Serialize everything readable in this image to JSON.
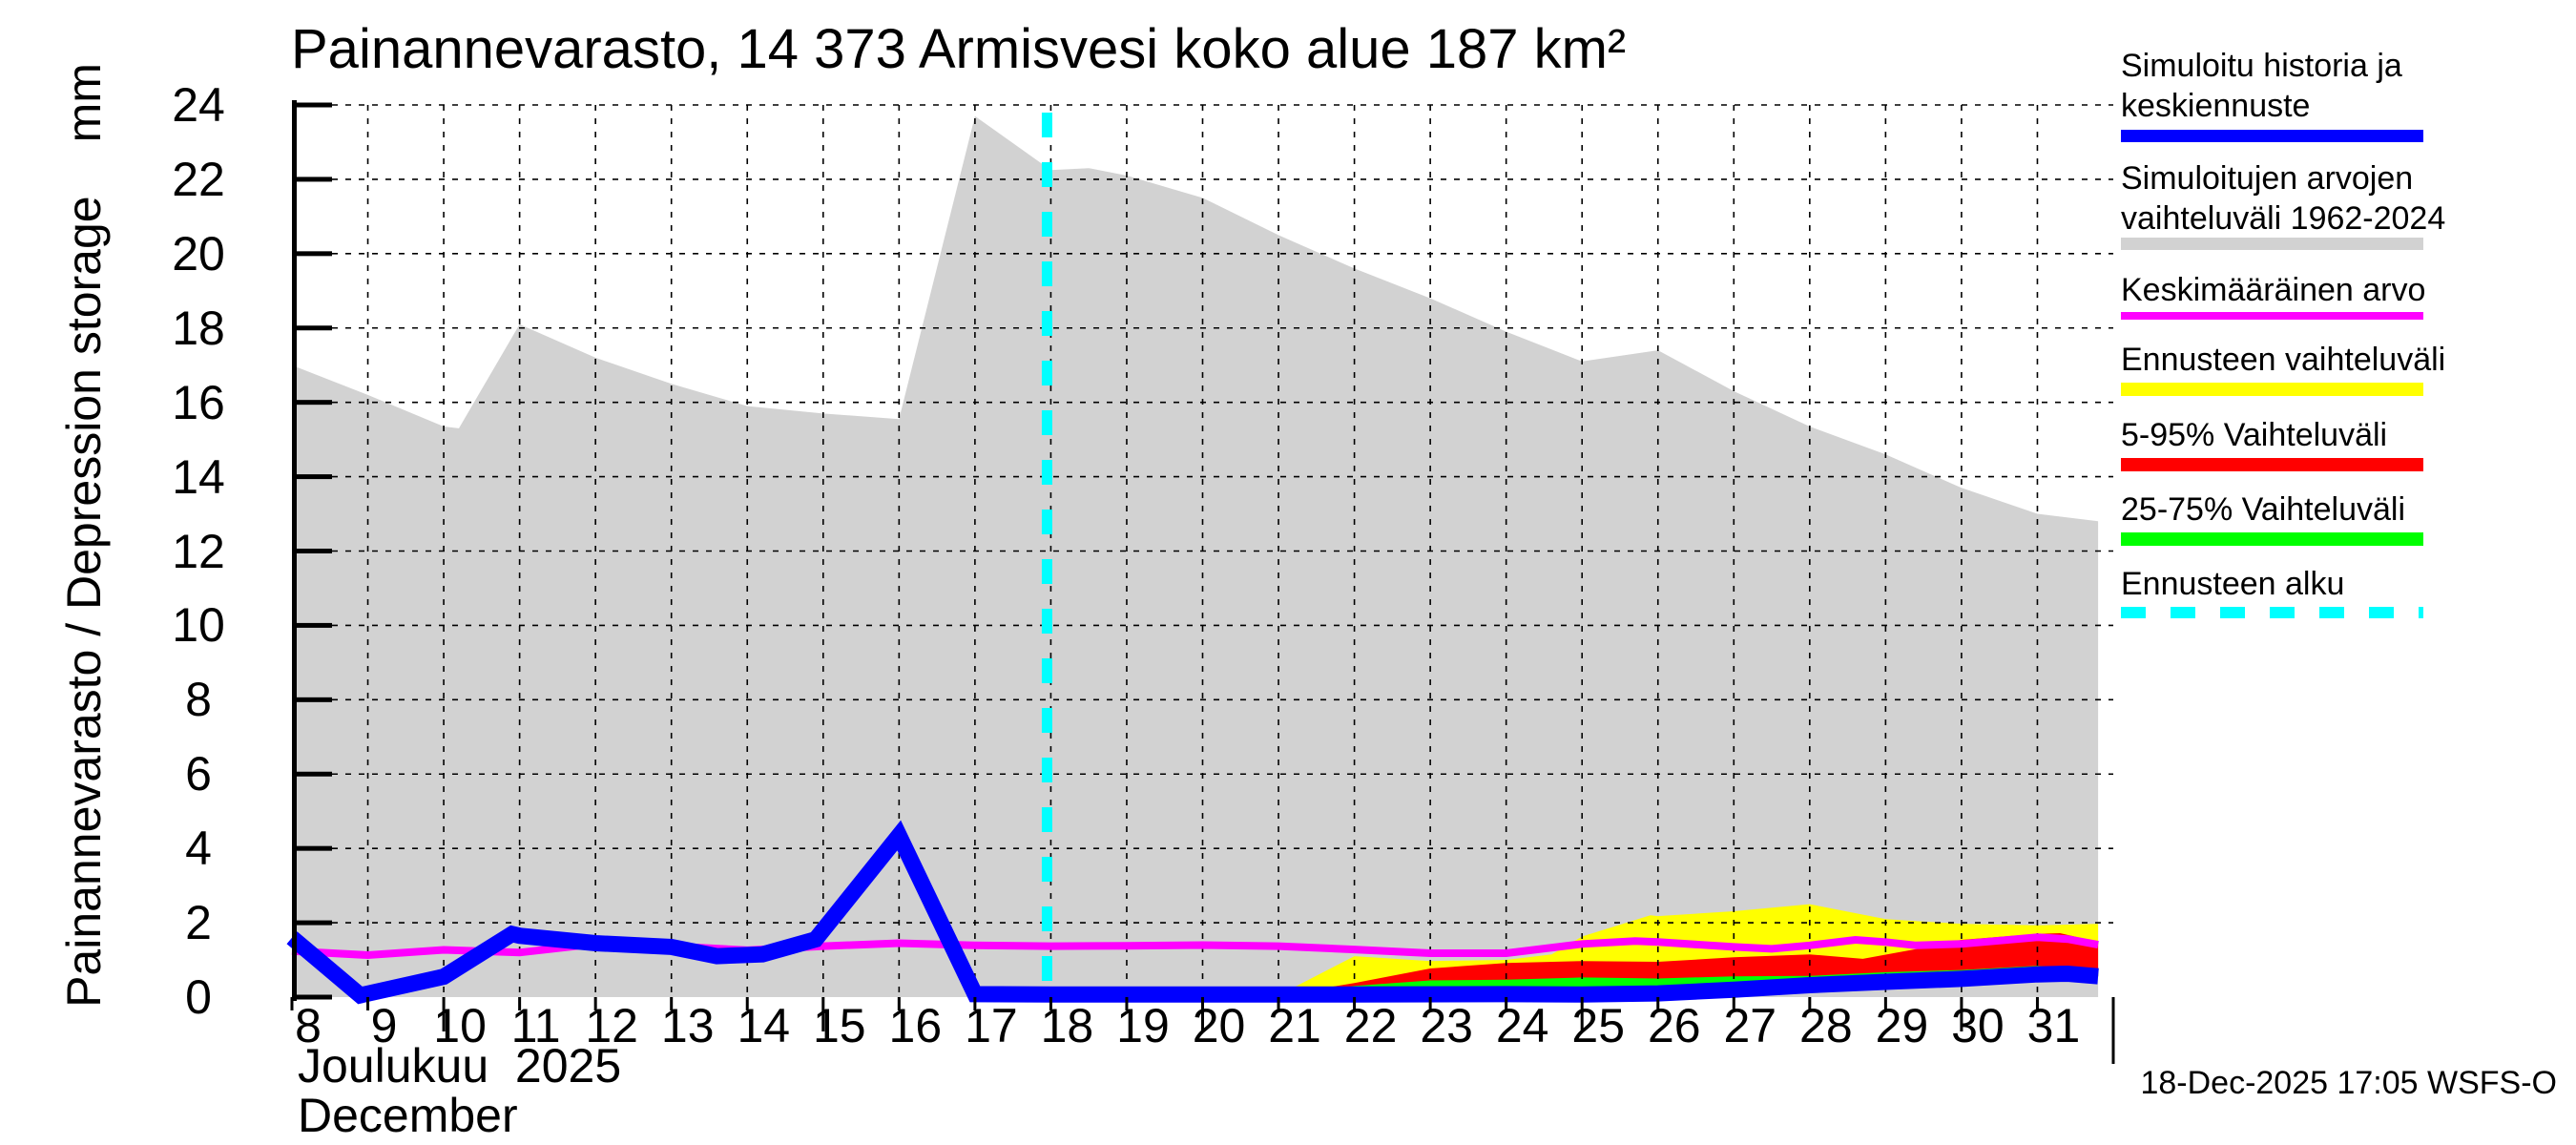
{
  "title": "Painannevarasto, 14 373 Armisvesi koko alue 187 km²",
  "y_axis": {
    "rotated_label": "Painannevarasto / Depression storage",
    "units": "mm",
    "min": 0,
    "max": 24,
    "tick_labels": [
      "0",
      "2",
      "4",
      "6",
      "8",
      "10",
      "12",
      "14",
      "16",
      "18",
      "20",
      "22",
      "24"
    ]
  },
  "x_axis": {
    "day_labels": [
      "8",
      "9",
      "10",
      "11",
      "12",
      "13",
      "14",
      "15",
      "16",
      "17",
      "18",
      "19",
      "20",
      "21",
      "22",
      "23",
      "24",
      "25",
      "26",
      "27",
      "28",
      "29",
      "30",
      "31"
    ],
    "major_days": [
      10,
      15,
      20,
      25,
      30
    ],
    "month_line1": "Joulukuu  2025",
    "month_line2": "December"
  },
  "footer": {
    "timestamp": "18-Dec-2025 17:05 WSFS-O"
  },
  "colors": {
    "background": "#FFFFFF",
    "historical_range": "#D2D2D2",
    "simulated_mean": "#0000FF",
    "long_term_mean": "#FF00FF",
    "forecast_range": "#FFFF00",
    "range_5_95": "#FF0000",
    "range_25_75": "#00FF00",
    "forecast_start": "#00FFFF",
    "grid": "#000000"
  },
  "legend": {
    "items": [
      {
        "key": "sim-history-mean-forecast",
        "label_lines": [
          "Simuloitu historia ja",
          "keskiennuste"
        ],
        "color": "#0000FF",
        "thickness": 13,
        "dashed": false
      },
      {
        "key": "sim-range-1962-2024",
        "label_lines": [
          "Simuloitujen arvojen",
          "vaihteluväli 1962-2024"
        ],
        "color": "#D2D2D2",
        "thickness": 13,
        "dashed": false
      },
      {
        "key": "long-term-mean",
        "label_lines": [
          "Keskimääräinen arvo"
        ],
        "color": "#FF00FF",
        "thickness": 8,
        "dashed": false
      },
      {
        "key": "forecast-range",
        "label_lines": [
          "Ennusteen vaihteluväli"
        ],
        "color": "#FFFF00",
        "thickness": 14,
        "dashed": false
      },
      {
        "key": "range-5-95",
        "label_lines": [
          "5-95% Vaihteluväli"
        ],
        "color": "#FF0000",
        "thickness": 14,
        "dashed": false
      },
      {
        "key": "range-25-75",
        "label_lines": [
          "25-75% Vaihteluväli"
        ],
        "color": "#00FF00",
        "thickness": 14,
        "dashed": false
      },
      {
        "key": "forecast-start",
        "label_lines": [
          "Ennusteen alku"
        ],
        "color": "#00FFFF",
        "thickness": 12,
        "dashed": true
      }
    ]
  },
  "chart_data": {
    "type": "area",
    "title": "Painannevarasto, 14 373 Armisvesi koko alue 187 km²",
    "xlabel": "Joulukuu 2025 / December",
    "ylabel": "Painannevarasto / Depression storage (mm)",
    "x_unit": "day of December 2025",
    "x_range": [
      8,
      31.8
    ],
    "y_range": [
      0,
      24
    ],
    "grid": true,
    "legend_position": "right",
    "forecast_start_day": 17.95,
    "series": [
      {
        "id": "sim_range_1962_2024",
        "label": "Simuloitujen arvojen vaihteluväli 1962-2024",
        "render": "area",
        "baseline": "zero",
        "color": "#D2D2D2",
        "points": [
          [
            8,
            17.0
          ],
          [
            9,
            16.2
          ],
          [
            10,
            15.35
          ],
          [
            10.2,
            15.3
          ],
          [
            11,
            18.1
          ],
          [
            12,
            17.2
          ],
          [
            13,
            16.5
          ],
          [
            14,
            15.9
          ],
          [
            15,
            15.7
          ],
          [
            16,
            15.55
          ],
          [
            17,
            23.7
          ],
          [
            18,
            22.25
          ],
          [
            18.5,
            22.3
          ],
          [
            19,
            22.1
          ],
          [
            20,
            21.5
          ],
          [
            21,
            20.5
          ],
          [
            22,
            19.6
          ],
          [
            23,
            18.8
          ],
          [
            24,
            17.9
          ],
          [
            25,
            17.1
          ],
          [
            26,
            17.4
          ],
          [
            27,
            16.3
          ],
          [
            28,
            15.35
          ],
          [
            29,
            14.6
          ],
          [
            30,
            13.7
          ],
          [
            31,
            13.0
          ],
          [
            31.8,
            12.8
          ]
        ]
      },
      {
        "id": "forecast_range",
        "label": "Ennusteen vaihteluväli",
        "render": "area",
        "baseline": "mean",
        "color": "#FFFF00",
        "points": [
          [
            21,
            0.05
          ],
          [
            22,
            1.1
          ],
          [
            23,
            0.97
          ],
          [
            24,
            1.0
          ],
          [
            24.6,
            1.15
          ],
          [
            25,
            1.63
          ],
          [
            25.9,
            2.2
          ],
          [
            26,
            2.18
          ],
          [
            27,
            2.31
          ],
          [
            28,
            2.5
          ],
          [
            29,
            2.1
          ],
          [
            30,
            1.97
          ],
          [
            31,
            1.93
          ],
          [
            31.8,
            1.97
          ]
        ]
      },
      {
        "id": "range_5_95",
        "label": "5-95% Vaihteluväli",
        "render": "area",
        "baseline": "mean",
        "color": "#FF0000",
        "points": [
          [
            21,
            0.03
          ],
          [
            22,
            0.38
          ],
          [
            23,
            0.77
          ],
          [
            24,
            0.92
          ],
          [
            25,
            0.97
          ],
          [
            26,
            0.95
          ],
          [
            27,
            1.07
          ],
          [
            28,
            1.15
          ],
          [
            28.7,
            1.03
          ],
          [
            29.5,
            1.33
          ],
          [
            30,
            1.54
          ],
          [
            31,
            1.7
          ],
          [
            31.3,
            1.72
          ],
          [
            31.8,
            1.48
          ]
        ]
      },
      {
        "id": "range_25_75",
        "label": "25-75% Vaihteluväli",
        "render": "area",
        "baseline": "mean",
        "color": "#00FF00",
        "points": [
          [
            21,
            0.02
          ],
          [
            22,
            0.3
          ],
          [
            23,
            0.45
          ],
          [
            24,
            0.47
          ],
          [
            25,
            0.53
          ],
          [
            26,
            0.5
          ],
          [
            27,
            0.56
          ],
          [
            28,
            0.57
          ],
          [
            29,
            0.67
          ],
          [
            30,
            0.73
          ],
          [
            31,
            0.84
          ],
          [
            31.8,
            0.73
          ]
        ]
      },
      {
        "id": "mean_long_term",
        "label": "Keskimääräinen arvo",
        "render": "line",
        "color": "#FF00FF",
        "width": 8,
        "points": [
          [
            8,
            1.24
          ],
          [
            9,
            1.13
          ],
          [
            10,
            1.27
          ],
          [
            11,
            1.2
          ],
          [
            12,
            1.43
          ],
          [
            13,
            1.37
          ],
          [
            14,
            1.26
          ],
          [
            15,
            1.37
          ],
          [
            16,
            1.45
          ],
          [
            17,
            1.39
          ],
          [
            18,
            1.37
          ],
          [
            19,
            1.38
          ],
          [
            20,
            1.4
          ],
          [
            21,
            1.37
          ],
          [
            22,
            1.28
          ],
          [
            23,
            1.18
          ],
          [
            24,
            1.18
          ],
          [
            25,
            1.43
          ],
          [
            25.7,
            1.51
          ],
          [
            26,
            1.48
          ],
          [
            27,
            1.35
          ],
          [
            27.5,
            1.3
          ],
          [
            28,
            1.39
          ],
          [
            28.6,
            1.54
          ],
          [
            29,
            1.48
          ],
          [
            29.4,
            1.39
          ],
          [
            30,
            1.43
          ],
          [
            31,
            1.61
          ],
          [
            31.4,
            1.56
          ],
          [
            31.8,
            1.41
          ]
        ]
      },
      {
        "id": "sim_history_mean_forecast",
        "label": "Simuloitu historia ja keskiennuste",
        "render": "line",
        "color": "#0000FF",
        "width": 17,
        "points": [
          [
            8,
            1.6
          ],
          [
            8.9,
            0.05
          ],
          [
            10,
            0.55
          ],
          [
            10.9,
            1.7
          ],
          [
            11,
            1.65
          ],
          [
            12,
            1.45
          ],
          [
            13,
            1.35
          ],
          [
            13.6,
            1.1
          ],
          [
            14.2,
            1.15
          ],
          [
            14.9,
            1.55
          ],
          [
            16,
            4.35
          ],
          [
            17,
            0.08
          ],
          [
            18,
            0.07
          ],
          [
            20,
            0.07
          ],
          [
            22,
            0.07
          ],
          [
            24,
            0.08
          ],
          [
            25,
            0.07
          ],
          [
            26,
            0.1
          ],
          [
            27,
            0.2
          ],
          [
            28,
            0.32
          ],
          [
            29,
            0.41
          ],
          [
            30,
            0.49
          ],
          [
            31,
            0.61
          ],
          [
            31.4,
            0.63
          ],
          [
            31.8,
            0.56
          ]
        ]
      }
    ]
  }
}
